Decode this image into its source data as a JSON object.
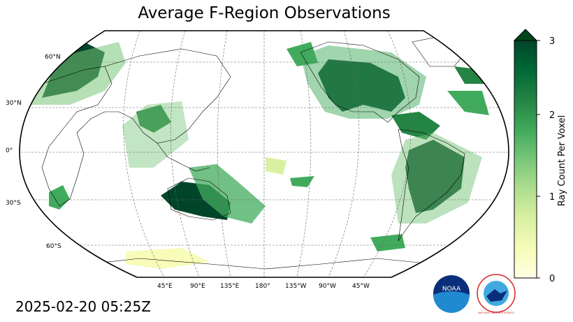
{
  "title": "Average F-Region Observations",
  "timestamp": "2025-02-20 05:25Z",
  "lat_labels": [
    "60°N",
    "30°N",
    "0°",
    "30°S",
    "60°S"
  ],
  "lon_labels": [
    "45°E",
    "90°E",
    "135°E",
    "180°",
    "135°W",
    "90°W",
    "45°W"
  ],
  "colorbar": {
    "label": "Ray Count Per Voxel",
    "ticks": [
      "0",
      "1",
      "2",
      "3"
    ],
    "min": 0,
    "max": 3,
    "extend": "max",
    "colormap": [
      "#ffffe5",
      "#f7fcb9",
      "#d9f0a3",
      "#addd8e",
      "#78c679",
      "#41ab5d",
      "#238443",
      "#006837",
      "#004529"
    ]
  },
  "logos": {
    "noaa_text": "NOAA",
    "nws_text": "NATIONAL WEATHER SERVICE"
  },
  "colors": {
    "map_background": "#ffffff",
    "coastline": "#000000",
    "gridline": "#666666"
  }
}
